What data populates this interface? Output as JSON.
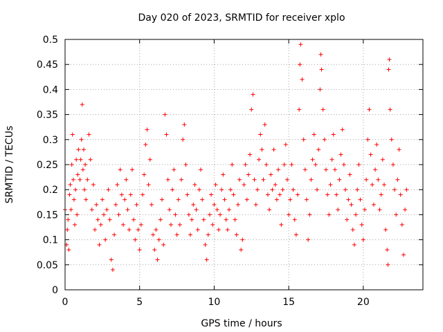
{
  "chart_data": {
    "type": "scatter",
    "title": "Day 020 of 2023, SRMTID for receiver xplo",
    "xlabel": "GPS time / hours",
    "ylabel": "SRMTID / TECUs",
    "xlim": [
      0,
      24
    ],
    "ylim": [
      0,
      0.5
    ],
    "x_ticks": [
      0,
      5,
      10,
      15,
      20
    ],
    "y_ticks": [
      0,
      0.05,
      0.1,
      0.15,
      0.2,
      0.25,
      0.3,
      0.35,
      0.4,
      0.45,
      0.5
    ],
    "x_tick_labels": [
      "0",
      "5",
      "10",
      "15",
      "20"
    ],
    "y_tick_labels": [
      "0",
      "0.05",
      "0.1",
      "0.15",
      "0.2",
      "0.25",
      "0.3",
      "0.35",
      "0.4",
      "0.45",
      "0.5"
    ],
    "grid": true,
    "marker": "plus",
    "color": "#ff0000",
    "series": [
      {
        "points": [
          [
            0.0,
            0.16
          ],
          [
            0.1,
            0.09
          ],
          [
            0.15,
            0.12
          ],
          [
            0.2,
            0.14
          ],
          [
            0.25,
            0.08
          ],
          [
            0.3,
            0.19
          ],
          [
            0.35,
            0.21
          ],
          [
            0.4,
            0.16
          ],
          [
            0.45,
            0.25
          ],
          [
            0.5,
            0.31
          ],
          [
            0.55,
            0.22
          ],
          [
            0.6,
            0.18
          ],
          [
            0.65,
            0.13
          ],
          [
            0.7,
            0.2
          ],
          [
            0.75,
            0.26
          ],
          [
            0.8,
            0.15
          ],
          [
            0.85,
            0.23
          ],
          [
            0.9,
            0.28
          ],
          [
            1.0,
            0.22
          ],
          [
            1.05,
            0.26
          ],
          [
            1.1,
            0.3
          ],
          [
            1.15,
            0.37
          ],
          [
            1.2,
            0.24
          ],
          [
            1.25,
            0.28
          ],
          [
            1.3,
            0.2
          ],
          [
            1.35,
            0.25
          ],
          [
            1.4,
            0.18
          ],
          [
            1.5,
            0.22
          ],
          [
            1.6,
            0.31
          ],
          [
            1.7,
            0.26
          ],
          [
            1.8,
            0.16
          ],
          [
            1.9,
            0.21
          ],
          [
            2.0,
            0.12
          ],
          [
            2.1,
            0.17
          ],
          [
            2.2,
            0.14
          ],
          [
            2.3,
            0.09
          ],
          [
            2.4,
            0.13
          ],
          [
            2.5,
            0.18
          ],
          [
            2.6,
            0.15
          ],
          [
            2.7,
            0.1
          ],
          [
            2.8,
            0.16
          ],
          [
            2.9,
            0.2
          ],
          [
            3.0,
            0.14
          ],
          [
            3.1,
            0.06
          ],
          [
            3.2,
            0.04
          ],
          [
            3.3,
            0.11
          ],
          [
            3.4,
            0.17
          ],
          [
            3.5,
            0.21
          ],
          [
            3.6,
            0.15
          ],
          [
            3.7,
            0.24
          ],
          [
            3.8,
            0.19
          ],
          [
            3.9,
            0.13
          ],
          [
            4.0,
            0.18
          ],
          [
            4.1,
            0.22
          ],
          [
            4.2,
            0.16
          ],
          [
            4.3,
            0.12
          ],
          [
            4.4,
            0.19
          ],
          [
            4.5,
            0.24
          ],
          [
            4.6,
            0.14
          ],
          [
            4.7,
            0.1
          ],
          [
            4.8,
            0.17
          ],
          [
            4.9,
            0.12
          ],
          [
            5.0,
            0.08
          ],
          [
            5.1,
            0.13
          ],
          [
            5.2,
            0.19
          ],
          [
            5.3,
            0.23
          ],
          [
            5.4,
            0.29
          ],
          [
            5.5,
            0.32
          ],
          [
            5.6,
            0.21
          ],
          [
            5.7,
            0.26
          ],
          [
            5.8,
            0.17
          ],
          [
            5.9,
            0.11
          ],
          [
            6.0,
            0.08
          ],
          [
            6.1,
            0.12
          ],
          [
            6.2,
            0.06
          ],
          [
            6.3,
            0.1
          ],
          [
            6.4,
            0.14
          ],
          [
            6.5,
            0.18
          ],
          [
            6.6,
            0.09
          ],
          [
            6.7,
            0.35
          ],
          [
            6.8,
            0.31
          ],
          [
            6.9,
            0.22
          ],
          [
            7.0,
            0.16
          ],
          [
            7.1,
            0.13
          ],
          [
            7.2,
            0.2
          ],
          [
            7.3,
            0.24
          ],
          [
            7.4,
            0.15
          ],
          [
            7.5,
            0.11
          ],
          [
            7.6,
            0.18
          ],
          [
            7.7,
            0.13
          ],
          [
            7.8,
            0.22
          ],
          [
            7.9,
            0.3
          ],
          [
            8.0,
            0.33
          ],
          [
            8.1,
            0.25
          ],
          [
            8.2,
            0.19
          ],
          [
            8.3,
            0.15
          ],
          [
            8.4,
            0.11
          ],
          [
            8.5,
            0.14
          ],
          [
            8.6,
            0.17
          ],
          [
            8.7,
            0.21
          ],
          [
            8.8,
            0.16
          ],
          [
            8.9,
            0.12
          ],
          [
            9.0,
            0.2
          ],
          [
            9.1,
            0.24
          ],
          [
            9.2,
            0.18
          ],
          [
            9.3,
            0.14
          ],
          [
            9.4,
            0.09
          ],
          [
            9.5,
            0.06
          ],
          [
            9.6,
            0.11
          ],
          [
            9.7,
            0.15
          ],
          [
            9.8,
            0.19
          ],
          [
            9.9,
            0.13
          ],
          [
            10.0,
            0.17
          ],
          [
            10.1,
            0.21
          ],
          [
            10.2,
            0.16
          ],
          [
            10.3,
            0.12
          ],
          [
            10.4,
            0.15
          ],
          [
            10.5,
            0.2
          ],
          [
            10.6,
            0.23
          ],
          [
            10.7,
            0.18
          ],
          [
            10.8,
            0.14
          ],
          [
            10.9,
            0.12
          ],
          [
            11.0,
            0.16
          ],
          [
            11.1,
            0.2
          ],
          [
            11.2,
            0.25
          ],
          [
            11.3,
            0.19
          ],
          [
            11.4,
            0.14
          ],
          [
            11.5,
            0.11
          ],
          [
            11.6,
            0.17
          ],
          [
            11.7,
            0.22
          ],
          [
            11.8,
            0.08
          ],
          [
            11.9,
            0.1
          ],
          [
            12.0,
            0.21
          ],
          [
            12.1,
            0.25
          ],
          [
            12.2,
            0.18
          ],
          [
            12.3,
            0.23
          ],
          [
            12.4,
            0.27
          ],
          [
            12.5,
            0.36
          ],
          [
            12.6,
            0.39
          ],
          [
            12.7,
            0.22
          ],
          [
            12.8,
            0.17
          ],
          [
            12.9,
            0.2
          ],
          [
            13.0,
            0.26
          ],
          [
            13.1,
            0.31
          ],
          [
            13.2,
            0.28
          ],
          [
            13.3,
            0.22
          ],
          [
            13.4,
            0.33
          ],
          [
            13.5,
            0.25
          ],
          [
            13.6,
            0.19
          ],
          [
            13.7,
            0.16
          ],
          [
            13.8,
            0.23
          ],
          [
            13.9,
            0.2
          ],
          [
            14.0,
            0.28
          ],
          [
            14.1,
            0.21
          ],
          [
            14.2,
            0.18
          ],
          [
            14.3,
            0.24
          ],
          [
            14.4,
            0.19
          ],
          [
            14.5,
            0.13
          ],
          [
            14.6,
            0.2
          ],
          [
            14.7,
            0.25
          ],
          [
            14.8,
            0.29
          ],
          [
            14.9,
            0.22
          ],
          [
            15.0,
            0.15
          ],
          [
            15.1,
            0.18
          ],
          [
            15.2,
            0.25
          ],
          [
            15.3,
            0.2
          ],
          [
            15.4,
            0.14
          ],
          [
            15.5,
            0.11
          ],
          [
            15.6,
            0.19
          ],
          [
            15.7,
            0.36
          ],
          [
            15.75,
            0.45
          ],
          [
            15.8,
            0.49
          ],
          [
            15.9,
            0.42
          ],
          [
            16.0,
            0.3
          ],
          [
            16.1,
            0.24
          ],
          [
            16.2,
            0.18
          ],
          [
            16.3,
            0.1
          ],
          [
            16.4,
            0.15
          ],
          [
            16.5,
            0.22
          ],
          [
            16.6,
            0.26
          ],
          [
            16.7,
            0.31
          ],
          [
            16.8,
            0.25
          ],
          [
            16.9,
            0.2
          ],
          [
            17.0,
            0.28
          ],
          [
            17.1,
            0.4
          ],
          [
            17.15,
            0.47
          ],
          [
            17.2,
            0.44
          ],
          [
            17.3,
            0.36
          ],
          [
            17.4,
            0.3
          ],
          [
            17.5,
            0.24
          ],
          [
            17.6,
            0.19
          ],
          [
            17.7,
            0.15
          ],
          [
            17.8,
            0.21
          ],
          [
            17.9,
            0.26
          ],
          [
            18.0,
            0.31
          ],
          [
            18.1,
            0.24
          ],
          [
            18.2,
            0.19
          ],
          [
            18.3,
            0.16
          ],
          [
            18.4,
            0.22
          ],
          [
            18.5,
            0.27
          ],
          [
            18.6,
            0.32
          ],
          [
            18.7,
            0.25
          ],
          [
            18.8,
            0.2
          ],
          [
            18.9,
            0.14
          ],
          [
            19.0,
            0.18
          ],
          [
            19.1,
            0.23
          ],
          [
            19.2,
            0.17
          ],
          [
            19.3,
            0.12
          ],
          [
            19.4,
            0.09
          ],
          [
            19.5,
            0.15
          ],
          [
            19.6,
            0.2
          ],
          [
            19.7,
            0.25
          ],
          [
            19.8,
            0.18
          ],
          [
            19.9,
            0.13
          ],
          [
            20.0,
            0.1
          ],
          [
            20.1,
            0.16
          ],
          [
            20.2,
            0.22
          ],
          [
            20.3,
            0.3
          ],
          [
            20.4,
            0.36
          ],
          [
            20.5,
            0.27
          ],
          [
            20.6,
            0.21
          ],
          [
            20.7,
            0.17
          ],
          [
            20.8,
            0.24
          ],
          [
            20.9,
            0.29
          ],
          [
            21.0,
            0.22
          ],
          [
            21.1,
            0.16
          ],
          [
            21.2,
            0.19
          ],
          [
            21.3,
            0.26
          ],
          [
            21.4,
            0.21
          ],
          [
            21.5,
            0.12
          ],
          [
            21.6,
            0.08
          ],
          [
            21.65,
            0.05
          ],
          [
            21.7,
            0.44
          ],
          [
            21.75,
            0.46
          ],
          [
            21.8,
            0.36
          ],
          [
            21.9,
            0.3
          ],
          [
            22.0,
            0.25
          ],
          [
            22.1,
            0.2
          ],
          [
            22.2,
            0.15
          ],
          [
            22.3,
            0.22
          ],
          [
            22.4,
            0.28
          ],
          [
            22.5,
            0.19
          ],
          [
            22.6,
            0.13
          ],
          [
            22.7,
            0.07
          ],
          [
            22.8,
            0.16
          ],
          [
            22.9,
            0.2
          ]
        ]
      }
    ]
  }
}
